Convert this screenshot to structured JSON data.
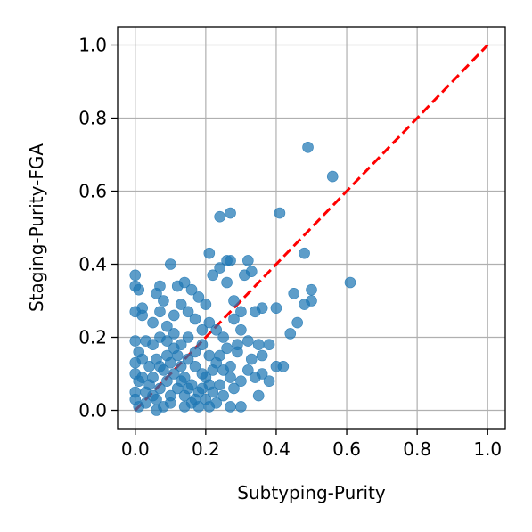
{
  "chart_data": {
    "type": "scatter",
    "title": "",
    "xlabel": "Subtyping-Purity",
    "ylabel": "Staging-Purity-FGA",
    "xlim": [
      -0.05,
      1.05
    ],
    "ylim": [
      -0.05,
      1.05
    ],
    "xticks": [
      0.0,
      0.2,
      0.4,
      0.6,
      0.8,
      1.0
    ],
    "yticks": [
      0.0,
      0.2,
      0.4,
      0.6,
      0.8,
      1.0
    ],
    "xtick_labels": [
      "0.0",
      "0.2",
      "0.4",
      "0.6",
      "0.8",
      "1.0"
    ],
    "ytick_labels": [
      "0.0",
      "0.2",
      "0.4",
      "0.6",
      "0.8",
      "1.0"
    ],
    "grid": true,
    "point_color": "#1f77b4",
    "reference_line": {
      "x": [
        0,
        1
      ],
      "y": [
        0,
        1
      ],
      "color": "#ff0000",
      "style": "dashed"
    },
    "points": [
      [
        0.49,
        0.72
      ],
      [
        0.56,
        0.64
      ],
      [
        0.41,
        0.54
      ],
      [
        0.27,
        0.54
      ],
      [
        0.24,
        0.53
      ],
      [
        0.48,
        0.43
      ],
      [
        0.21,
        0.43
      ],
      [
        0.1,
        0.4
      ],
      [
        0.26,
        0.41
      ],
      [
        0.27,
        0.41
      ],
      [
        0.32,
        0.41
      ],
      [
        0.24,
        0.39
      ],
      [
        0.33,
        0.38
      ],
      [
        0.31,
        0.37
      ],
      [
        0.22,
        0.37
      ],
      [
        0.61,
        0.35
      ],
      [
        0.5,
        0.33
      ],
      [
        0.45,
        0.32
      ],
      [
        0.5,
        0.3
      ],
      [
        0.48,
        0.29
      ],
      [
        0.4,
        0.28
      ],
      [
        0.46,
        0.24
      ],
      [
        0.44,
        0.21
      ],
      [
        0.36,
        0.28
      ],
      [
        0.34,
        0.27
      ],
      [
        0.3,
        0.27
      ],
      [
        0.0,
        0.37
      ],
      [
        0.0,
        0.34
      ],
      [
        0.01,
        0.33
      ],
      [
        0.0,
        0.27
      ],
      [
        0.02,
        0.26
      ],
      [
        0.02,
        0.28
      ],
      [
        0.06,
        0.32
      ],
      [
        0.07,
        0.34
      ],
      [
        0.08,
        0.3
      ],
      [
        0.12,
        0.34
      ],
      [
        0.14,
        0.35
      ],
      [
        0.16,
        0.33
      ],
      [
        0.18,
        0.31
      ],
      [
        0.2,
        0.29
      ],
      [
        0.26,
        0.35
      ],
      [
        0.28,
        0.3
      ],
      [
        0.28,
        0.25
      ],
      [
        0.3,
        0.22
      ],
      [
        0.32,
        0.19
      ],
      [
        0.35,
        0.18
      ],
      [
        0.38,
        0.18
      ],
      [
        0.4,
        0.12
      ],
      [
        0.42,
        0.12
      ],
      [
        0.38,
        0.08
      ],
      [
        0.36,
        0.1
      ],
      [
        0.35,
        0.04
      ],
      [
        0.3,
        0.01
      ],
      [
        0.27,
        0.01
      ],
      [
        0.36,
        0.15
      ],
      [
        0.33,
        0.14
      ],
      [
        0.29,
        0.16
      ],
      [
        0.27,
        0.12
      ],
      [
        0.29,
        0.18
      ],
      [
        0.25,
        0.2
      ],
      [
        0.23,
        0.22
      ],
      [
        0.21,
        0.24
      ],
      [
        0.19,
        0.22
      ],
      [
        0.17,
        0.25
      ],
      [
        0.15,
        0.27
      ],
      [
        0.13,
        0.29
      ],
      [
        0.11,
        0.26
      ],
      [
        0.09,
        0.23
      ],
      [
        0.07,
        0.2
      ],
      [
        0.05,
        0.18
      ],
      [
        0.03,
        0.19
      ],
      [
        0.0,
        0.19
      ],
      [
        0.01,
        0.16
      ],
      [
        0.0,
        0.13
      ],
      [
        0.0,
        0.1
      ],
      [
        0.01,
        0.08
      ],
      [
        0.0,
        0.05
      ],
      [
        0.0,
        0.03
      ],
      [
        0.01,
        0.01
      ],
      [
        0.03,
        0.02
      ],
      [
        0.05,
        0.04
      ],
      [
        0.07,
        0.06
      ],
      [
        0.09,
        0.08
      ],
      [
        0.11,
        0.1
      ],
      [
        0.13,
        0.12
      ],
      [
        0.15,
        0.14
      ],
      [
        0.17,
        0.16
      ],
      [
        0.19,
        0.18
      ],
      [
        0.21,
        0.15
      ],
      [
        0.23,
        0.13
      ],
      [
        0.25,
        0.11
      ],
      [
        0.27,
        0.09
      ],
      [
        0.24,
        0.07
      ],
      [
        0.22,
        0.05
      ],
      [
        0.2,
        0.03
      ],
      [
        0.18,
        0.01
      ],
      [
        0.16,
        0.02
      ],
      [
        0.14,
        0.04
      ],
      [
        0.12,
        0.06
      ],
      [
        0.1,
        0.02
      ],
      [
        0.08,
        0.01
      ],
      [
        0.06,
        0.03
      ],
      [
        0.04,
        0.07
      ],
      [
        0.02,
        0.09
      ],
      [
        0.04,
        0.12
      ],
      [
        0.06,
        0.14
      ],
      [
        0.08,
        0.11
      ],
      [
        0.1,
        0.13
      ],
      [
        0.12,
        0.15
      ],
      [
        0.14,
        0.09
      ],
      [
        0.16,
        0.07
      ],
      [
        0.18,
        0.05
      ],
      [
        0.2,
        0.09
      ],
      [
        0.22,
        0.11
      ],
      [
        0.24,
        0.15
      ],
      [
        0.26,
        0.17
      ],
      [
        0.28,
        0.06
      ],
      [
        0.3,
        0.08
      ],
      [
        0.32,
        0.11
      ],
      [
        0.34,
        0.09
      ],
      [
        0.05,
        0.24
      ],
      [
        0.07,
        0.27
      ],
      [
        0.09,
        0.19
      ],
      [
        0.11,
        0.21
      ],
      [
        0.13,
        0.18
      ],
      [
        0.15,
        0.2
      ],
      [
        0.17,
        0.12
      ],
      [
        0.19,
        0.1
      ],
      [
        0.21,
        0.07
      ],
      [
        0.23,
        0.02
      ],
      [
        0.25,
        0.04
      ],
      [
        0.03,
        0.05
      ],
      [
        0.05,
        0.09
      ],
      [
        0.07,
        0.12
      ],
      [
        0.09,
        0.15
      ],
      [
        0.11,
        0.17
      ],
      [
        0.13,
        0.08
      ],
      [
        0.15,
        0.06
      ],
      [
        0.17,
        0.03
      ],
      [
        0.19,
        0.06
      ],
      [
        0.21,
        0.01
      ],
      [
        0.06,
        0.0
      ],
      [
        0.1,
        0.04
      ],
      [
        0.14,
        0.01
      ],
      [
        0.02,
        0.14
      ]
    ]
  }
}
